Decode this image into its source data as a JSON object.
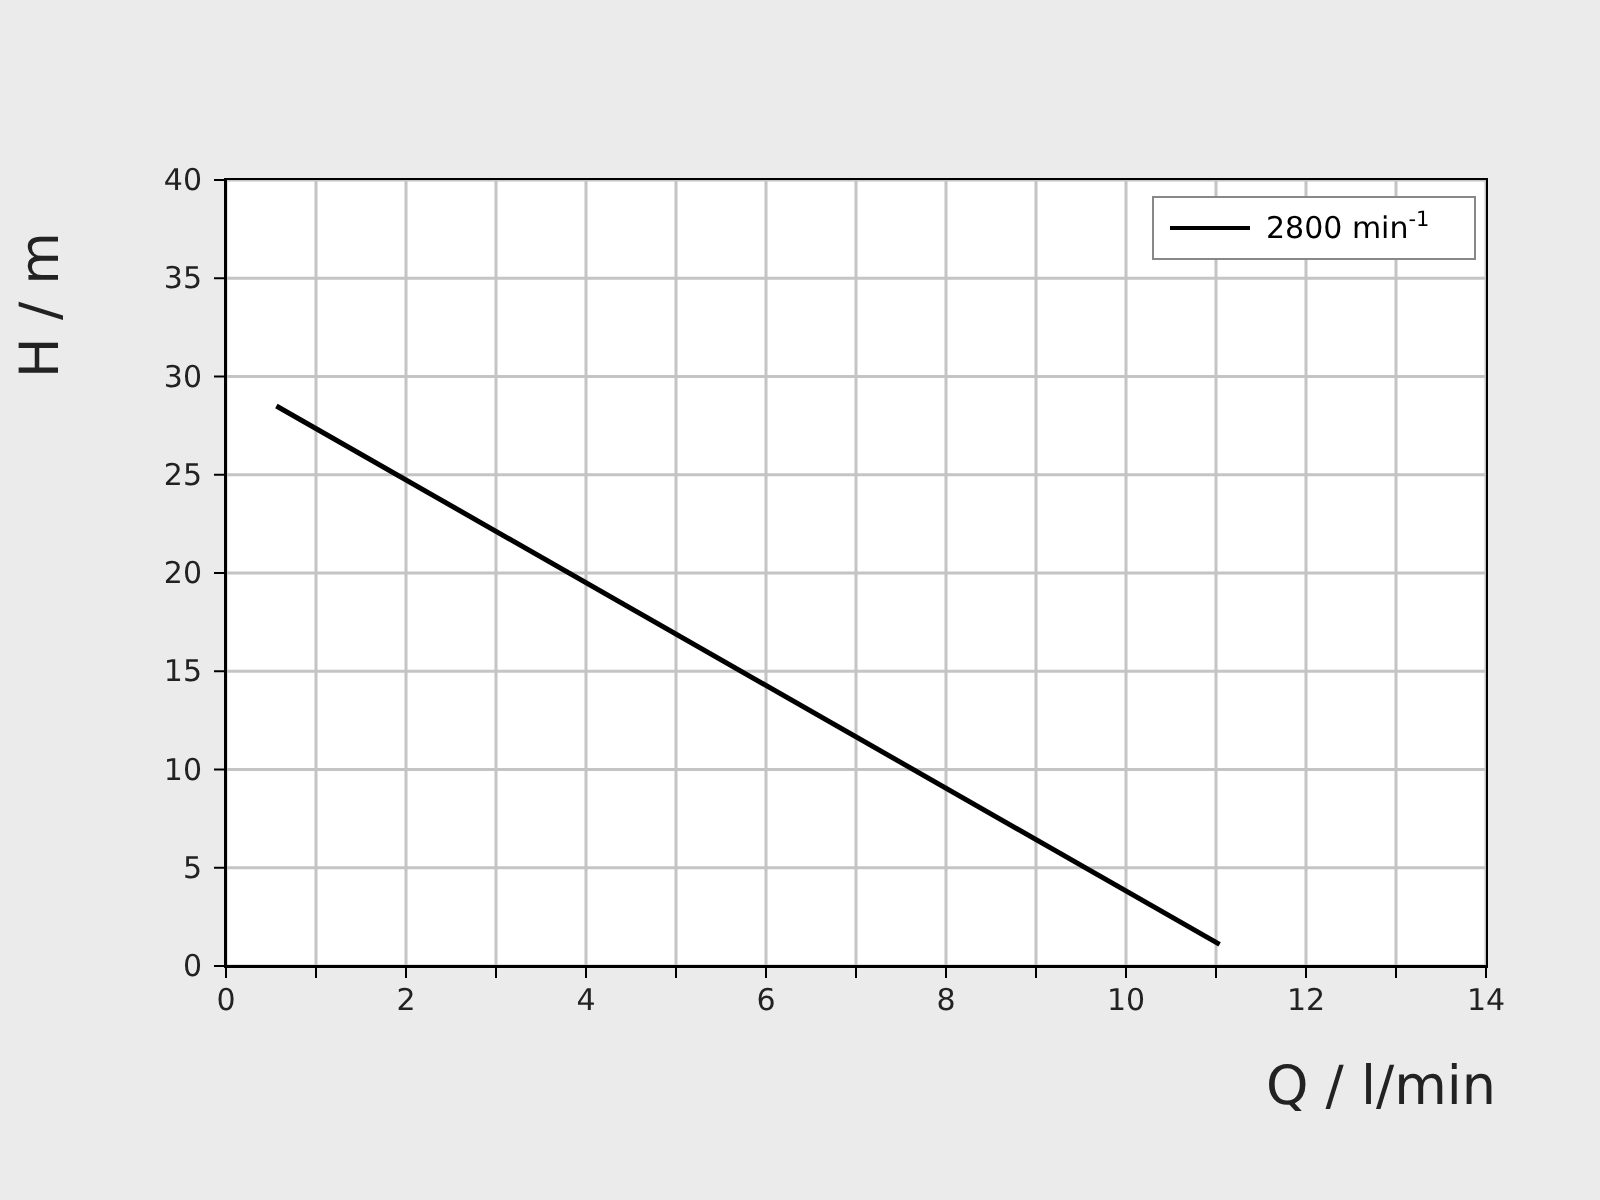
{
  "chart_data": {
    "type": "line",
    "xlabel": "Q / l/min",
    "ylabel": "H / m",
    "x": [
      0.56,
      11.04
    ],
    "series": [
      {
        "name": "2800 min$^{-1}$",
        "color": "#000000",
        "values": [
          28.5,
          1.1
        ]
      }
    ],
    "xlim": [
      0,
      14
    ],
    "xticks": [
      0,
      {
        "value": 1,
        "label": null
      },
      2,
      {
        "value": 3,
        "label": null
      },
      4,
      {
        "value": 5,
        "label": null
      },
      6,
      {
        "value": 7,
        "label": null
      },
      8,
      {
        "value": 9,
        "label": null
      },
      10,
      {
        "value": 11,
        "label": null
      },
      12,
      {
        "value": 13,
        "label": null
      },
      14
    ],
    "ylim": [
      0,
      40
    ],
    "yticks": [
      0,
      5,
      10,
      15,
      20,
      25,
      30,
      35,
      40
    ],
    "grid": true,
    "legend": "top right",
    "marker": "none",
    "line_style": "solid"
  }
}
